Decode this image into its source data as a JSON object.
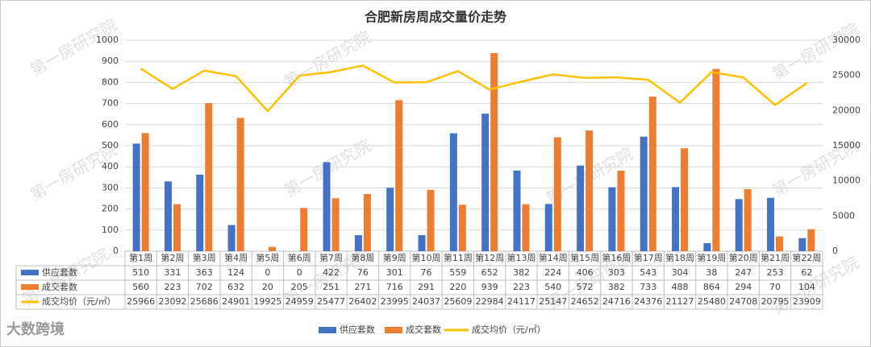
{
  "chart_data": {
    "type": "bar",
    "title": "合肥新房周成交量价走势",
    "categories": [
      "第1周",
      "第2周",
      "第3周",
      "第4周",
      "第5周",
      "第6周",
      "第7周",
      "第8周",
      "第9周",
      "第10周",
      "第11周",
      "第12周",
      "第13周",
      "第14周",
      "第15周",
      "第16周",
      "第17周",
      "第18周",
      "第19周",
      "第20周",
      "第21周",
      "第22周"
    ],
    "series": [
      {
        "name": "供应套数",
        "type": "bar",
        "color": "#4472c4",
        "values": [
          510,
          331,
          363,
          124,
          0,
          0,
          422,
          76,
          301,
          76,
          559,
          652,
          382,
          224,
          406,
          303,
          543,
          304,
          38,
          247,
          253,
          62
        ]
      },
      {
        "name": "成交套数",
        "type": "bar",
        "color": "#ed7d31",
        "values": [
          560,
          223,
          702,
          632,
          20,
          205,
          251,
          271,
          716,
          291,
          220,
          939,
          223,
          540,
          572,
          382,
          733,
          488,
          864,
          294,
          70,
          104
        ]
      },
      {
        "name": "成交均价（元/㎡）",
        "type": "line",
        "axis": "y2",
        "color": "#ffc000",
        "values": [
          25966,
          23092,
          25686,
          24901,
          19925,
          24959,
          25477,
          26402,
          23995,
          24037,
          25609,
          22984,
          24117,
          25147,
          24652,
          24716,
          24376,
          21127,
          25480,
          24708,
          20795,
          23909
        ]
      }
    ],
    "ylim": [
      0,
      1000
    ],
    "yticks": [
      0,
      100,
      200,
      300,
      400,
      500,
      600,
      700,
      800,
      900,
      1000
    ],
    "y2lim": [
      0,
      30000
    ],
    "y2ticks": [
      0,
      5000,
      10000,
      15000,
      20000,
      25000,
      30000
    ],
    "grid": true
  },
  "watermark": "第一房研究院",
  "logo": "大数跨境"
}
